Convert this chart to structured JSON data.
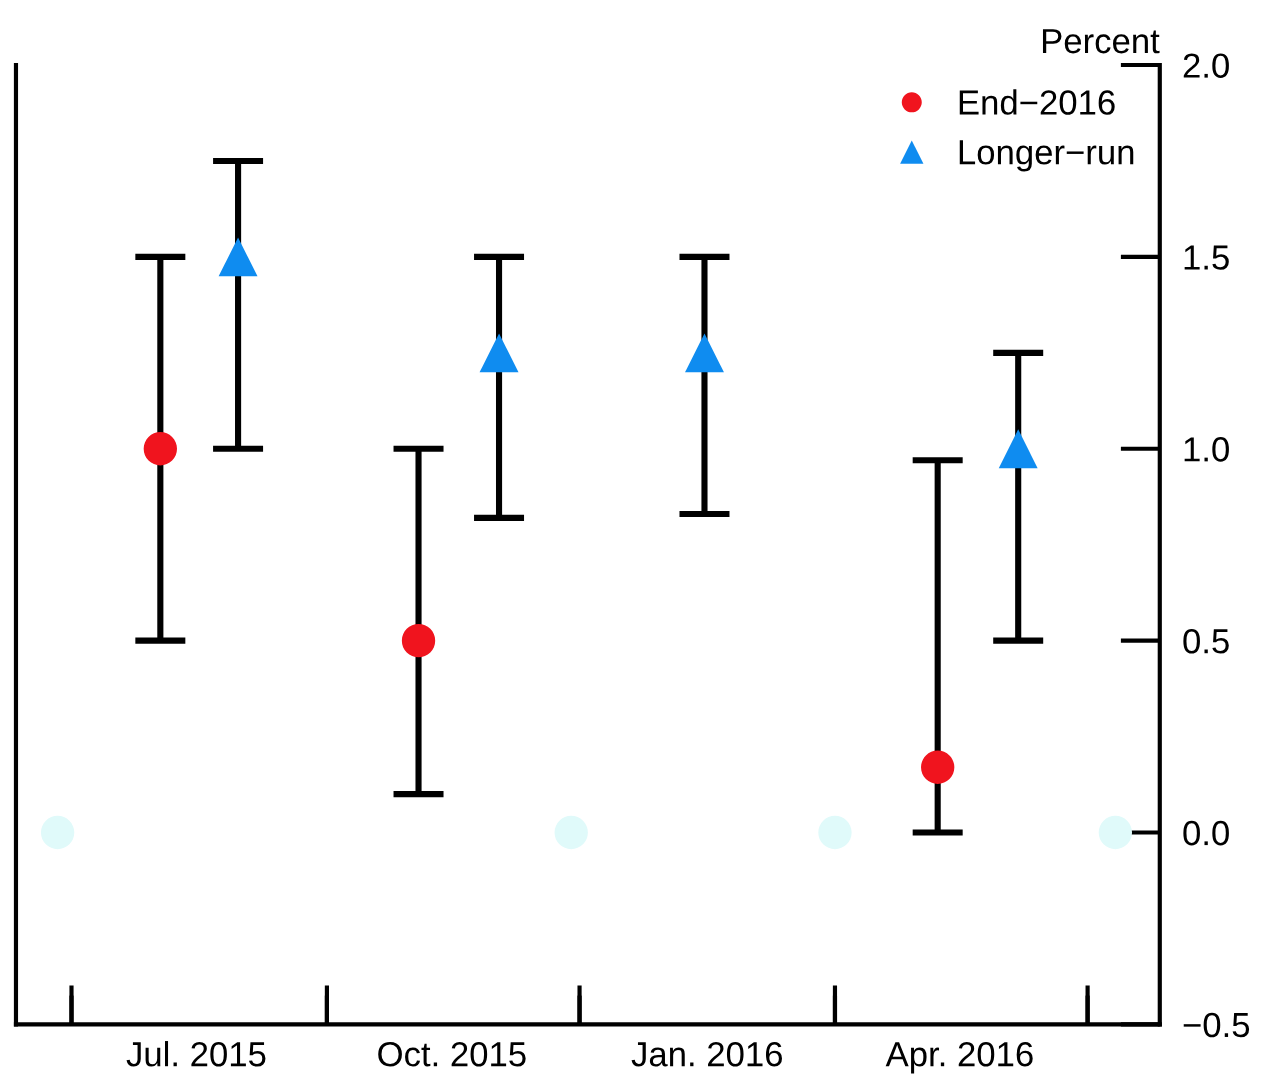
{
  "chart_data": {
    "type": "scatter",
    "ylabel": "Percent",
    "xlim": [
      "2015-05-11",
      "2016-06-26"
    ],
    "xticks": [
      {
        "value": "2015-05-31",
        "label": null
      },
      {
        "value": "2015-07-15",
        "label": "Jul. 2015"
      },
      {
        "value": "2015-08-31",
        "label": null
      },
      {
        "value": "2015-10-15",
        "label": "Oct. 2015"
      },
      {
        "value": "2015-11-30",
        "label": null
      },
      {
        "value": "2016-01-15",
        "label": "Jan. 2016"
      },
      {
        "value": "2016-03-01",
        "label": null
      },
      {
        "value": "2016-04-15",
        "label": "Apr. 2016"
      },
      {
        "value": "2016-05-31",
        "label": null
      }
    ],
    "ylim": [
      -0.5,
      2.0
    ],
    "yticks": [
      {
        "value": -0.5,
        "label": "−0.5"
      },
      {
        "value": 0.0,
        "label": "0.0"
      },
      {
        "value": 0.5,
        "label": "0.5"
      },
      {
        "value": 1.0,
        "label": "1.0"
      },
      {
        "value": 1.5,
        "label": "1.5"
      },
      {
        "value": 2.0,
        "label": "2.0"
      }
    ],
    "grid": false,
    "legend": "top right",
    "series": [
      {
        "name": "End−2016",
        "color": "#f0141e",
        "marker": "circle",
        "x": [
          "2015-07-02",
          "2015-10-03",
          "2016-04-07"
        ],
        "values": [
          1.0,
          0.5,
          0.17
        ],
        "errors": [
          [
            0.5,
            1.5
          ],
          [
            0.1,
            1.0
          ],
          [
            0.0,
            0.97
          ]
        ]
      },
      {
        "name": "Longer−run",
        "color": "#0f8cf0",
        "marker": "triangle",
        "x": [
          "2015-07-30",
          "2015-11-01",
          "2016-01-14",
          "2016-05-06"
        ],
        "values": [
          1.5,
          1.25,
          1.25,
          1.0
        ],
        "errors": [
          [
            1.0,
            1.75
          ],
          [
            0.82,
            1.5
          ],
          [
            0.83,
            1.5
          ],
          [
            0.5,
            1.25
          ]
        ]
      },
      {
        "color": "#e0fafa",
        "marker": "circle",
        "x": [
          "2015-05-26",
          "2015-11-27",
          "2016-03-01",
          "2016-06-10"
        ],
        "values": [
          0,
          0,
          0,
          0
        ]
      }
    ]
  }
}
